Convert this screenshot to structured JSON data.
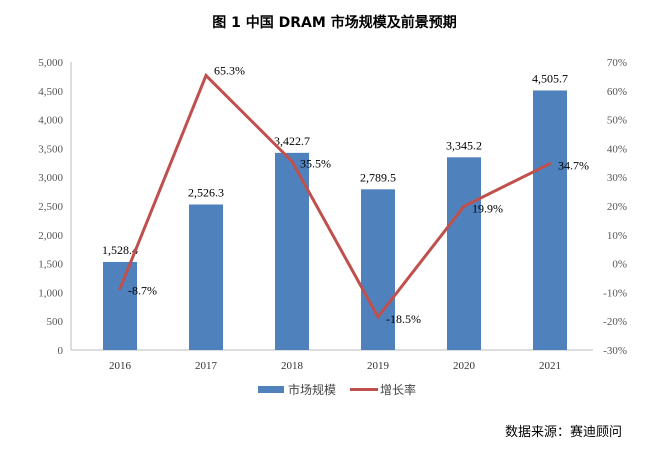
{
  "chart_data": {
    "type": "bar+line",
    "title": "图 1 中国 DRAM 市场规模及前景预期",
    "categories": [
      "2016",
      "2017",
      "2018",
      "2019",
      "2020",
      "2021"
    ],
    "series": [
      {
        "name": "市场规模",
        "type": "bar",
        "axis": "left",
        "color": "#4F81BD",
        "values": [
          1528.4,
          2526.3,
          3422.7,
          2789.5,
          3345.2,
          4505.7
        ],
        "labels": [
          "1,528.4",
          "2,526.3",
          "3,422.7",
          "2,789.5",
          "3,345.2",
          "4,505.7"
        ]
      },
      {
        "name": "增长率",
        "type": "line",
        "axis": "right",
        "color": "#C0504D",
        "values": [
          -8.7,
          65.3,
          35.5,
          -18.5,
          19.9,
          34.7
        ],
        "labels": [
          "-8.7%",
          "65.3%",
          "35.5%",
          "-18.5%",
          "19.9%",
          "34.7%"
        ]
      }
    ],
    "ylim_left": [
      0,
      5000
    ],
    "yticks_left": [
      "0",
      "500",
      "1,000",
      "1,500",
      "2,000",
      "2,500",
      "3,000",
      "3,500",
      "4,000",
      "4,500",
      "5,000"
    ],
    "ylim_right": [
      -30,
      70
    ],
    "yticks_right": [
      "-30%",
      "-20%",
      "-10%",
      "0%",
      "10%",
      "20%",
      "30%",
      "40%",
      "50%",
      "60%",
      "70%"
    ],
    "legend_position": "bottom",
    "grid": false
  },
  "source": "数据来源：赛迪顾问"
}
